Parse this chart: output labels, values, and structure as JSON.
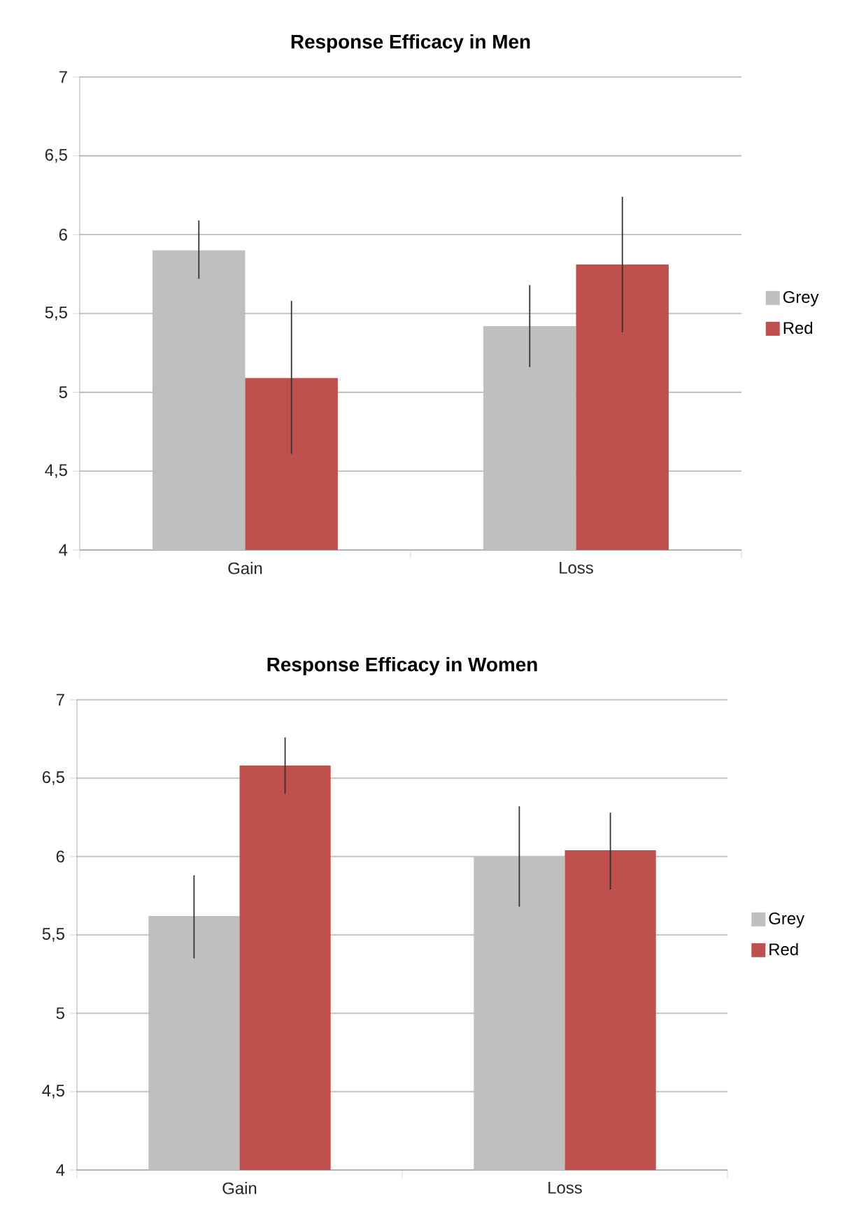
{
  "chart_data": [
    {
      "type": "bar",
      "title": "Response Efficacy in Men",
      "categories": [
        "Gain",
        "Loss"
      ],
      "series": [
        {
          "name": "Grey",
          "color": "#bfbfbf",
          "values": [
            5.9,
            5.42
          ],
          "errors": [
            [
              5.72,
              6.09
            ],
            [
              5.16,
              5.68
            ]
          ]
        },
        {
          "name": "Red",
          "color": "#c0504d",
          "values": [
            5.09,
            5.81
          ],
          "errors": [
            [
              4.61,
              5.58
            ],
            [
              5.38,
              6.24
            ]
          ]
        }
      ],
      "ylim": [
        4,
        7
      ],
      "yticks": [
        4,
        {
          "value": 4.5,
          "label": "4,5"
        },
        5,
        {
          "value": 5.5,
          "label": "5,5"
        },
        6,
        {
          "value": 6.5,
          "label": "6,5"
        },
        7
      ],
      "grid": "y",
      "legend": "right"
    },
    {
      "type": "bar",
      "title": "Response Efficacy in Women",
      "categories": [
        "Gain",
        "Loss"
      ],
      "series": [
        {
          "name": "Grey",
          "color": "#bfbfbf",
          "values": [
            5.62,
            6.0
          ],
          "errors": [
            [
              5.35,
              5.88
            ],
            [
              5.68,
              6.32
            ]
          ]
        },
        {
          "name": "Red",
          "color": "#c0504d",
          "values": [
            6.58,
            6.04
          ],
          "errors": [
            [
              6.4,
              6.76
            ],
            [
              5.79,
              6.28
            ]
          ]
        }
      ],
      "ylim": [
        4,
        7
      ],
      "yticks": [
        4,
        {
          "value": 4.5,
          "label": "4,5"
        },
        5,
        {
          "value": 5.5,
          "label": "5,5"
        },
        6,
        {
          "value": 6.5,
          "label": "6,5"
        },
        7
      ],
      "grid": "y",
      "legend": "right"
    }
  ]
}
